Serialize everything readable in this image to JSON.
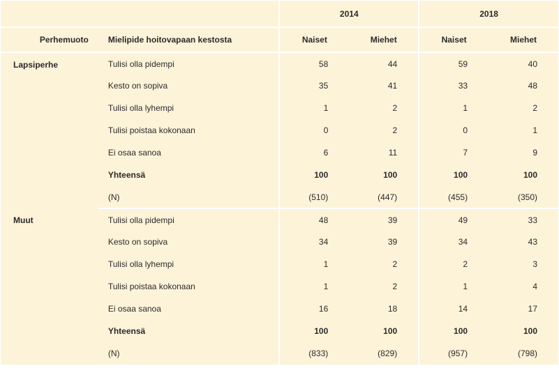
{
  "colors": {
    "background": "#fdf3d9",
    "divider": "#ffffff",
    "text": "#2a2a2a"
  },
  "typography": {
    "font_family": "Arial, Helvetica, sans-serif",
    "font_size_pt": 9,
    "header_weight": 700
  },
  "header": {
    "family_label": "Perhemuoto",
    "opinion_label": "Mielipide hoitovapaan kestosta",
    "groups": [
      {
        "label": "2014",
        "sub": [
          "Naiset",
          "Miehet"
        ]
      },
      {
        "label": "2018",
        "sub": [
          "Naiset",
          "Miehet"
        ]
      }
    ]
  },
  "sections": [
    {
      "family": "Lapsiperhe",
      "rows": [
        {
          "opinion": "Tulisi olla pidempi",
          "vals": [
            "58",
            "44",
            "59",
            "40"
          ],
          "bold": false
        },
        {
          "opinion": "Kesto on sopiva",
          "vals": [
            "35",
            "41",
            "33",
            "48"
          ],
          "bold": false
        },
        {
          "opinion": "Tulisi olla lyhempi",
          "vals": [
            "1",
            "2",
            "1",
            "2"
          ],
          "bold": false
        },
        {
          "opinion": "Tulisi poistaa kokonaan",
          "vals": [
            "0",
            "2",
            "0",
            "1"
          ],
          "bold": false
        },
        {
          "opinion": "Ei osaa sanoa",
          "vals": [
            "6",
            "11",
            "7",
            "9"
          ],
          "bold": false
        },
        {
          "opinion": "Yhteensä",
          "vals": [
            "100",
            "100",
            "100",
            "100"
          ],
          "bold": true
        },
        {
          "opinion": "(N)",
          "vals": [
            "(510)",
            "(447)",
            "(455)",
            "(350)"
          ],
          "bold": false
        }
      ]
    },
    {
      "family": "Muut",
      "rows": [
        {
          "opinion": "Tulisi olla pidempi",
          "vals": [
            "48",
            "39",
            "49",
            "33"
          ],
          "bold": false
        },
        {
          "opinion": "Kesto on sopiva",
          "vals": [
            "34",
            "39",
            "34",
            "43"
          ],
          "bold": false
        },
        {
          "opinion": "Tulisi olla lyhempi",
          "vals": [
            "1",
            "2",
            "2",
            "3"
          ],
          "bold": false
        },
        {
          "opinion": "Tulisi poistaa kokonaan",
          "vals": [
            "1",
            "2",
            "1",
            "4"
          ],
          "bold": false
        },
        {
          "opinion": "Ei osaa sanoa",
          "vals": [
            "16",
            "18",
            "14",
            "17"
          ],
          "bold": false
        },
        {
          "opinion": "Yhteensä",
          "vals": [
            "100",
            "100",
            "100",
            "100"
          ],
          "bold": true
        },
        {
          "opinion": "(N)",
          "vals": [
            "(833)",
            "(829)",
            "(957)",
            "(798)"
          ],
          "bold": false
        }
      ]
    }
  ]
}
